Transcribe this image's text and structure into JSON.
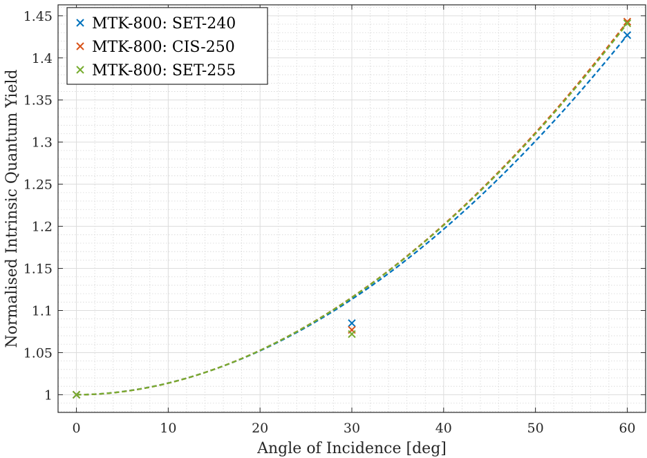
{
  "chart_data": {
    "type": "scatter",
    "xlabel": "Angle of Incidence [deg]",
    "ylabel": "Normalised Intrinsic Quantum Yield",
    "xlim": [
      -2,
      62
    ],
    "ylim": [
      0.979,
      1.463
    ],
    "x_ticks": [
      0,
      10,
      20,
      30,
      40,
      50,
      60
    ],
    "y_ticks": [
      1,
      1.05,
      1.1,
      1.15,
      1.2,
      1.25,
      1.3,
      1.35,
      1.4,
      1.45
    ],
    "x_tick_labels": [
      "0",
      "10",
      "20",
      "30",
      "40",
      "50",
      "60"
    ],
    "y_tick_labels": [
      "1",
      "1.05",
      "1.1",
      "1.15",
      "1.2",
      "1.25",
      "1.3",
      "1.35",
      "1.4",
      "1.45"
    ],
    "grid": true,
    "minor_grid": true,
    "legend_position": "top-left",
    "series": [
      {
        "name": "MTK-800: SET-240",
        "color": "#0072BD",
        "marker": "x",
        "x": [
          0,
          30,
          60
        ],
        "y": [
          1.0,
          1.085,
          1.427
        ],
        "fit_exponent": 1.913
      },
      {
        "name": "MTK-800: CIS-250",
        "color": "#D95319",
        "marker": "x",
        "x": [
          0,
          30,
          60
        ],
        "y": [
          1.0,
          1.077,
          1.443
        ],
        "fit_exponent": 1.938
      },
      {
        "name": "MTK-800: SET-255",
        "color": "#77AC30",
        "marker": "x",
        "x": [
          0,
          30,
          60
        ],
        "y": [
          1.0,
          1.072,
          1.441
        ],
        "fit_exponent": 1.935
      }
    ]
  }
}
